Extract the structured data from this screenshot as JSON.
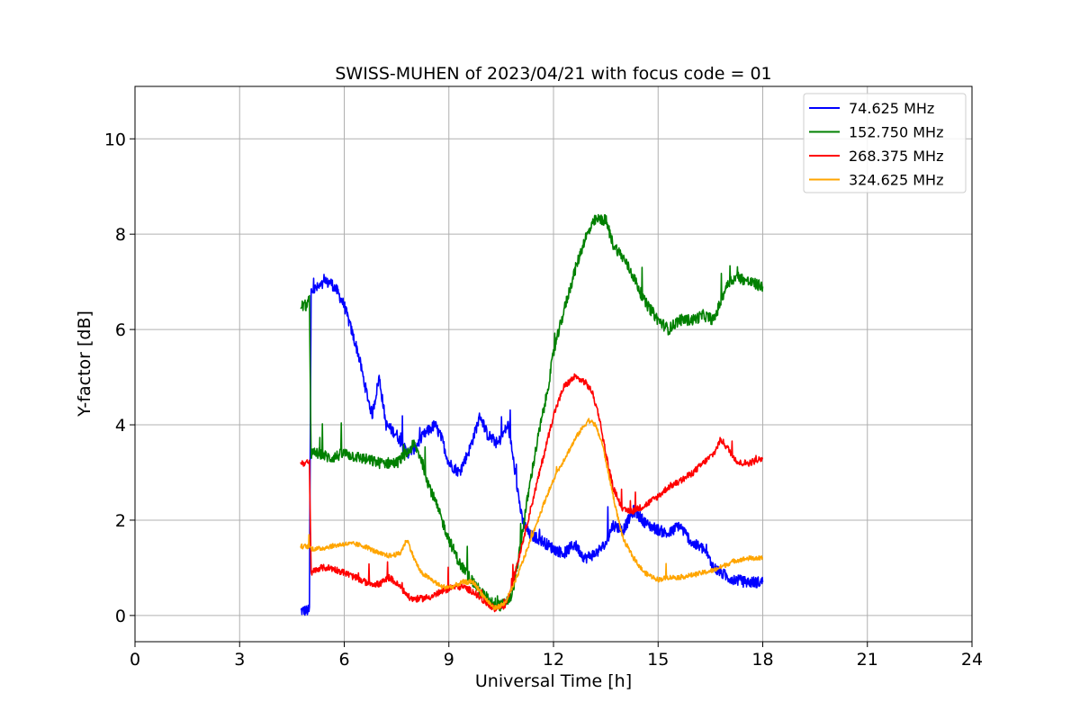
{
  "chart_data": {
    "type": "line",
    "title": "SWISS-MUHEN of 2023/04/21 with focus code = 01",
    "xlabel": "Universal Time [h]",
    "ylabel": "Y-factor [dB]",
    "xlim": [
      0,
      24
    ],
    "ylim": [
      -0.55,
      11.1
    ],
    "xticks": [
      0,
      3,
      6,
      9,
      12,
      15,
      18,
      21,
      24
    ],
    "yticks": [
      0,
      2,
      4,
      6,
      8,
      10
    ],
    "grid": true,
    "legend_position": "top-right",
    "series": [
      {
        "name": " 74.625 MHz",
        "color": "#0000ff",
        "noise": 0.12,
        "points": [
          [
            4.75,
            0.1
          ],
          [
            4.85,
            0.1
          ],
          [
            5.0,
            0.1
          ],
          [
            5.05,
            6.8
          ],
          [
            5.3,
            6.9
          ],
          [
            5.6,
            7.0
          ],
          [
            5.8,
            6.8
          ],
          [
            6.0,
            6.5
          ],
          [
            6.2,
            6.0
          ],
          [
            6.4,
            5.5
          ],
          [
            6.6,
            4.8
          ],
          [
            6.8,
            4.2
          ],
          [
            7.0,
            5.0
          ],
          [
            7.2,
            4.0
          ],
          [
            7.5,
            3.8
          ],
          [
            7.8,
            3.4
          ],
          [
            8.0,
            3.5
          ],
          [
            8.3,
            3.8
          ],
          [
            8.6,
            4.0
          ],
          [
            8.8,
            3.7
          ],
          [
            9.0,
            3.2
          ],
          [
            9.3,
            3.0
          ],
          [
            9.6,
            3.5
          ],
          [
            9.9,
            4.2
          ],
          [
            10.1,
            3.8
          ],
          [
            10.4,
            3.6
          ],
          [
            10.7,
            4.0
          ],
          [
            10.9,
            3.0
          ],
          [
            11.1,
            2.0
          ],
          [
            11.3,
            1.7
          ],
          [
            11.6,
            1.6
          ],
          [
            12.0,
            1.4
          ],
          [
            12.3,
            1.3
          ],
          [
            12.6,
            1.5
          ],
          [
            12.9,
            1.2
          ],
          [
            13.2,
            1.3
          ],
          [
            13.5,
            1.5
          ],
          [
            13.7,
            1.9
          ],
          [
            14.0,
            1.8
          ],
          [
            14.3,
            2.2
          ],
          [
            14.7,
            1.9
          ],
          [
            15.0,
            1.8
          ],
          [
            15.3,
            1.7
          ],
          [
            15.6,
            1.9
          ],
          [
            16.0,
            1.5
          ],
          [
            16.3,
            1.4
          ],
          [
            16.6,
            1.0
          ],
          [
            17.0,
            0.8
          ],
          [
            17.5,
            0.7
          ],
          [
            18.0,
            0.7
          ]
        ]
      },
      {
        "name": "152.750 MHz",
        "color": "#008000",
        "noise": 0.12,
        "points": [
          [
            4.75,
            6.5
          ],
          [
            4.9,
            6.5
          ],
          [
            5.0,
            6.6
          ],
          [
            5.05,
            3.4
          ],
          [
            5.3,
            3.4
          ],
          [
            5.6,
            3.3
          ],
          [
            6.0,
            3.4
          ],
          [
            6.5,
            3.3
          ],
          [
            7.0,
            3.2
          ],
          [
            7.5,
            3.2
          ],
          [
            7.8,
            3.4
          ],
          [
            8.0,
            3.6
          ],
          [
            8.2,
            3.3
          ],
          [
            8.4,
            2.8
          ],
          [
            8.6,
            2.4
          ],
          [
            8.8,
            2.0
          ],
          [
            9.0,
            1.6
          ],
          [
            9.3,
            1.1
          ],
          [
            9.6,
            0.8
          ],
          [
            9.9,
            0.5
          ],
          [
            10.2,
            0.3
          ],
          [
            10.5,
            0.2
          ],
          [
            10.8,
            0.4
          ],
          [
            11.0,
            1.2
          ],
          [
            11.2,
            2.2
          ],
          [
            11.4,
            3.1
          ],
          [
            11.6,
            3.9
          ],
          [
            11.8,
            4.6
          ],
          [
            12.0,
            5.5
          ],
          [
            12.3,
            6.4
          ],
          [
            12.6,
            7.2
          ],
          [
            12.9,
            7.9
          ],
          [
            13.2,
            8.3
          ],
          [
            13.5,
            8.3
          ],
          [
            13.7,
            7.8
          ],
          [
            14.0,
            7.5
          ],
          [
            14.3,
            7.1
          ],
          [
            14.6,
            6.6
          ],
          [
            15.0,
            6.2
          ],
          [
            15.3,
            6.0
          ],
          [
            15.6,
            6.2
          ],
          [
            16.0,
            6.2
          ],
          [
            16.3,
            6.3
          ],
          [
            16.6,
            6.2
          ],
          [
            16.8,
            6.6
          ],
          [
            17.0,
            7.0
          ],
          [
            17.3,
            7.1
          ],
          [
            17.6,
            7.0
          ],
          [
            18.0,
            6.9
          ]
        ]
      },
      {
        "name": "268.375 MHz",
        "color": "#ff0000",
        "noise": 0.07,
        "points": [
          [
            4.75,
            3.2
          ],
          [
            4.9,
            3.2
          ],
          [
            5.0,
            3.2
          ],
          [
            5.05,
            0.9
          ],
          [
            5.3,
            1.0
          ],
          [
            5.6,
            1.0
          ],
          [
            6.0,
            0.9
          ],
          [
            6.3,
            0.8
          ],
          [
            6.6,
            0.7
          ],
          [
            7.0,
            0.65
          ],
          [
            7.3,
            0.8
          ],
          [
            7.6,
            0.6
          ],
          [
            7.9,
            0.35
          ],
          [
            8.2,
            0.35
          ],
          [
            8.5,
            0.4
          ],
          [
            8.8,
            0.5
          ],
          [
            9.1,
            0.6
          ],
          [
            9.4,
            0.6
          ],
          [
            9.7,
            0.5
          ],
          [
            10.0,
            0.3
          ],
          [
            10.3,
            0.15
          ],
          [
            10.6,
            0.2
          ],
          [
            10.8,
            0.6
          ],
          [
            11.1,
            1.5
          ],
          [
            11.4,
            2.4
          ],
          [
            11.7,
            3.3
          ],
          [
            12.0,
            4.2
          ],
          [
            12.3,
            4.8
          ],
          [
            12.6,
            5.0
          ],
          [
            12.9,
            4.9
          ],
          [
            13.1,
            4.7
          ],
          [
            13.3,
            4.2
          ],
          [
            13.5,
            3.4
          ],
          [
            13.7,
            2.7
          ],
          [
            14.0,
            2.2
          ],
          [
            14.3,
            2.2
          ],
          [
            14.6,
            2.3
          ],
          [
            15.0,
            2.5
          ],
          [
            15.3,
            2.7
          ],
          [
            15.6,
            2.8
          ],
          [
            16.0,
            3.0
          ],
          [
            16.3,
            3.2
          ],
          [
            16.6,
            3.4
          ],
          [
            16.8,
            3.7
          ],
          [
            17.0,
            3.5
          ],
          [
            17.3,
            3.2
          ],
          [
            17.6,
            3.2
          ],
          [
            18.0,
            3.3
          ]
        ]
      },
      {
        "name": "324.625 MHz",
        "color": "#ffa500",
        "noise": 0.05,
        "points": [
          [
            4.75,
            1.45
          ],
          [
            5.0,
            1.45
          ],
          [
            5.05,
            1.4
          ],
          [
            5.3,
            1.4
          ],
          [
            5.6,
            1.45
          ],
          [
            6.0,
            1.5
          ],
          [
            6.3,
            1.5
          ],
          [
            6.6,
            1.45
          ],
          [
            7.0,
            1.3
          ],
          [
            7.3,
            1.25
          ],
          [
            7.6,
            1.3
          ],
          [
            7.8,
            1.6
          ],
          [
            8.0,
            1.2
          ],
          [
            8.2,
            0.9
          ],
          [
            8.5,
            0.75
          ],
          [
            8.8,
            0.6
          ],
          [
            9.1,
            0.6
          ],
          [
            9.4,
            0.7
          ],
          [
            9.7,
            0.7
          ],
          [
            10.0,
            0.4
          ],
          [
            10.3,
            0.15
          ],
          [
            10.6,
            0.25
          ],
          [
            10.9,
            0.7
          ],
          [
            11.2,
            1.3
          ],
          [
            11.5,
            1.9
          ],
          [
            11.8,
            2.5
          ],
          [
            12.1,
            3.0
          ],
          [
            12.4,
            3.4
          ],
          [
            12.7,
            3.8
          ],
          [
            13.0,
            4.1
          ],
          [
            13.2,
            4.0
          ],
          [
            13.4,
            3.6
          ],
          [
            13.6,
            2.9
          ],
          [
            13.8,
            2.2
          ],
          [
            14.0,
            1.6
          ],
          [
            14.3,
            1.2
          ],
          [
            14.6,
            0.9
          ],
          [
            15.0,
            0.75
          ],
          [
            15.3,
            0.8
          ],
          [
            15.6,
            0.8
          ],
          [
            16.0,
            0.85
          ],
          [
            16.3,
            0.9
          ],
          [
            16.6,
            0.95
          ],
          [
            16.9,
            1.05
          ],
          [
            17.2,
            1.15
          ],
          [
            17.6,
            1.2
          ],
          [
            18.0,
            1.2
          ]
        ]
      }
    ]
  }
}
